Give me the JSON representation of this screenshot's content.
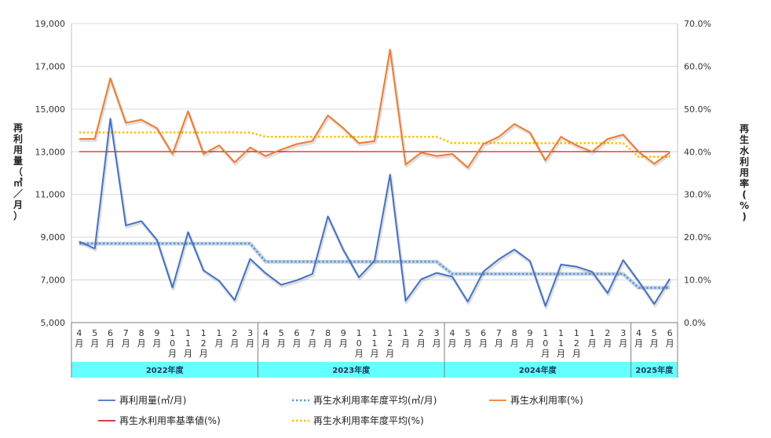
{
  "chart_data": {
    "type": "line",
    "categories": [
      "4月",
      "5月",
      "6月",
      "7月",
      "8月",
      "9月",
      "10月",
      "11月",
      "12月",
      "1月",
      "2月",
      "3月",
      "4月",
      "5月",
      "6月",
      "7月",
      "8月",
      "9月",
      "10月",
      "11月",
      "12月",
      "1月",
      "2月",
      "3月",
      "4月",
      "5月",
      "6月",
      "7月",
      "8月",
      "9月",
      "10月",
      "11月",
      "12月",
      "1月",
      "2月",
      "3月",
      "4月",
      "5月",
      "6月"
    ],
    "fiscal_years": [
      {
        "label": "2022年度",
        "start": 0,
        "end": 11
      },
      {
        "label": "2023年度",
        "start": 12,
        "end": 23
      },
      {
        "label": "2024年度",
        "start": 24,
        "end": 35
      },
      {
        "label": "2025年度",
        "start": 36,
        "end": 38
      }
    ],
    "ylabel_left": "再利用量（㎥／月）",
    "ylabel_right": "再生水利用率(%)",
    "left_axis": {
      "min": 5000,
      "max": 19000,
      "step": 2000,
      "ticks": [
        "5,000",
        "7,000",
        "9,000",
        "11,000",
        "13,000",
        "15,000",
        "17,000",
        "19,000"
      ]
    },
    "right_axis": {
      "min": 0,
      "max": 70,
      "step": 10,
      "ticks": [
        "0.0%",
        "10.0%",
        "20.0%",
        "30.0%",
        "40.0%",
        "50.0%",
        "60.0%",
        "70.0%"
      ]
    },
    "series": [
      {
        "name": "再利用量(㎥/月)",
        "axis": "left",
        "color": "#4472C4",
        "style": "solid",
        "values": [
          8800,
          8470,
          14550,
          9550,
          9750,
          8870,
          6640,
          9240,
          7440,
          6960,
          6060,
          7980,
          7310,
          6770,
          6980,
          7280,
          9980,
          8400,
          7120,
          7900,
          11930,
          6020,
          7030,
          7330,
          7150,
          5980,
          7390,
          7970,
          8420,
          7890,
          5780,
          7720,
          7620,
          7380,
          6380,
          7930,
          6930,
          5870,
          7050
        ]
      },
      {
        "name": "再生水利用率年度平均(㎥/月)",
        "axis": "left",
        "color": "#5B9BD5",
        "style": "dotted",
        "values": [
          8700,
          8700,
          8700,
          8700,
          8700,
          8700,
          8700,
          8700,
          8700,
          8700,
          8700,
          8700,
          7850,
          7850,
          7850,
          7850,
          7850,
          7850,
          7850,
          7850,
          7850,
          7850,
          7850,
          7850,
          7280,
          7280,
          7280,
          7280,
          7280,
          7280,
          7280,
          7280,
          7280,
          7280,
          7280,
          7280,
          6630,
          6630,
          6630
        ]
      },
      {
        "name": "再生水利用率(%)",
        "axis": "right",
        "color": "#ED7D31",
        "style": "solid",
        "values": [
          43.0,
          43.0,
          57.2,
          46.8,
          47.5,
          45.5,
          39.5,
          49.5,
          39.5,
          41.5,
          37.5,
          41.0,
          39.0,
          40.5,
          41.8,
          42.5,
          48.5,
          45.5,
          42.0,
          42.5,
          63.9,
          37.0,
          39.8,
          39.0,
          39.5,
          36.3,
          41.8,
          43.5,
          46.5,
          44.5,
          38.0,
          43.5,
          41.5,
          40.0,
          43.0,
          44.0,
          40.0,
          37.2,
          39.8
        ]
      },
      {
        "name": "再生水利用率基準値(%)",
        "axis": "right",
        "color": "#E02020",
        "style": "solid",
        "values": [
          40,
          40,
          40,
          40,
          40,
          40,
          40,
          40,
          40,
          40,
          40,
          40,
          40,
          40,
          40,
          40,
          40,
          40,
          40,
          40,
          40,
          40,
          40,
          40,
          40,
          40,
          40,
          40,
          40,
          40,
          40,
          40,
          40,
          40,
          40,
          40,
          40,
          40,
          40
        ]
      },
      {
        "name": "再生水利用率年度平均(%)",
        "axis": "right",
        "color": "#FFC000",
        "style": "dotted",
        "values": [
          44.5,
          44.5,
          44.5,
          44.5,
          44.5,
          44.5,
          44.5,
          44.5,
          44.5,
          44.5,
          44.5,
          44.5,
          43.5,
          43.5,
          43.5,
          43.5,
          43.5,
          43.5,
          43.5,
          43.5,
          43.5,
          43.5,
          43.5,
          43.5,
          42.0,
          42.0,
          42.0,
          42.0,
          42.0,
          42.0,
          42.0,
          42.0,
          42.0,
          42.0,
          42.0,
          42.0,
          38.8,
          38.8,
          38.8
        ]
      }
    ],
    "legend_position": "bottom",
    "grid": "horizontal"
  }
}
